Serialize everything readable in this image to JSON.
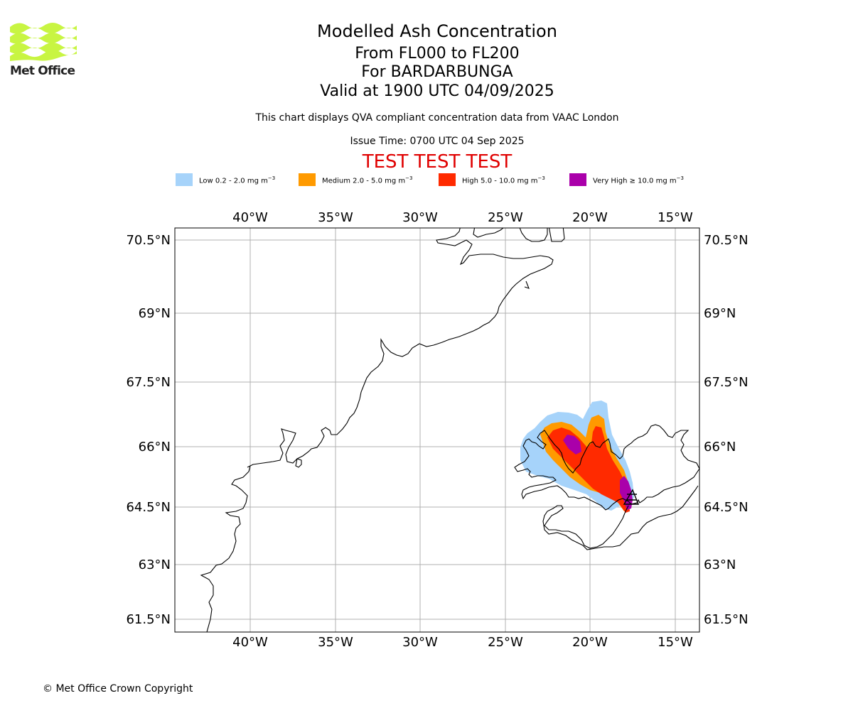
{
  "branding": {
    "logo_text": "Met Office",
    "logo_color": "#c8f542"
  },
  "header": {
    "title": "Modelled Ash Concentration",
    "level_range": "From FL000 to FL200",
    "volcano": "For BARDARBUNGA",
    "valid_time": "Valid at 1900 UTC 04/09/2025",
    "description": "This chart displays QVA compliant concentration data from VAAC London",
    "issue_time": "Issue Time: 0700 UTC 04 Sep 2025",
    "test_banner": "TEST TEST TEST",
    "test_color": "#e00000"
  },
  "legend": {
    "items": [
      {
        "label": "Low 0.2 - 2.0 mg m",
        "sup": "−3",
        "color": "#a6d3fa"
      },
      {
        "label": "Medium 2.0 - 5.0 mg m",
        "sup": "−3",
        "color": "#ff9a00"
      },
      {
        "label": "High 5.0 - 10.0 mg m",
        "sup": "−3",
        "color": "#ff2a00"
      },
      {
        "label": "Very High  ≥  10.0 mg m",
        "sup": "−3",
        "color": "#aa00aa"
      }
    ]
  },
  "map": {
    "lon_ticks": [
      "40°W",
      "35°W",
      "30°W",
      "25°W",
      "20°W",
      "15°W"
    ],
    "lat_ticks": [
      "70.5°N",
      "69°N",
      "67.5°N",
      "66°N",
      "64.5°N",
      "63°N",
      "61.5°N"
    ],
    "lon_range": [
      -44.4,
      -13.6
    ],
    "lat_range": [
      61.2,
      71.2
    ],
    "gridlines": true,
    "volcano_marker": "volcano-symbol-icon"
  },
  "footer": {
    "copyright": "© Met Office Crown Copyright"
  }
}
